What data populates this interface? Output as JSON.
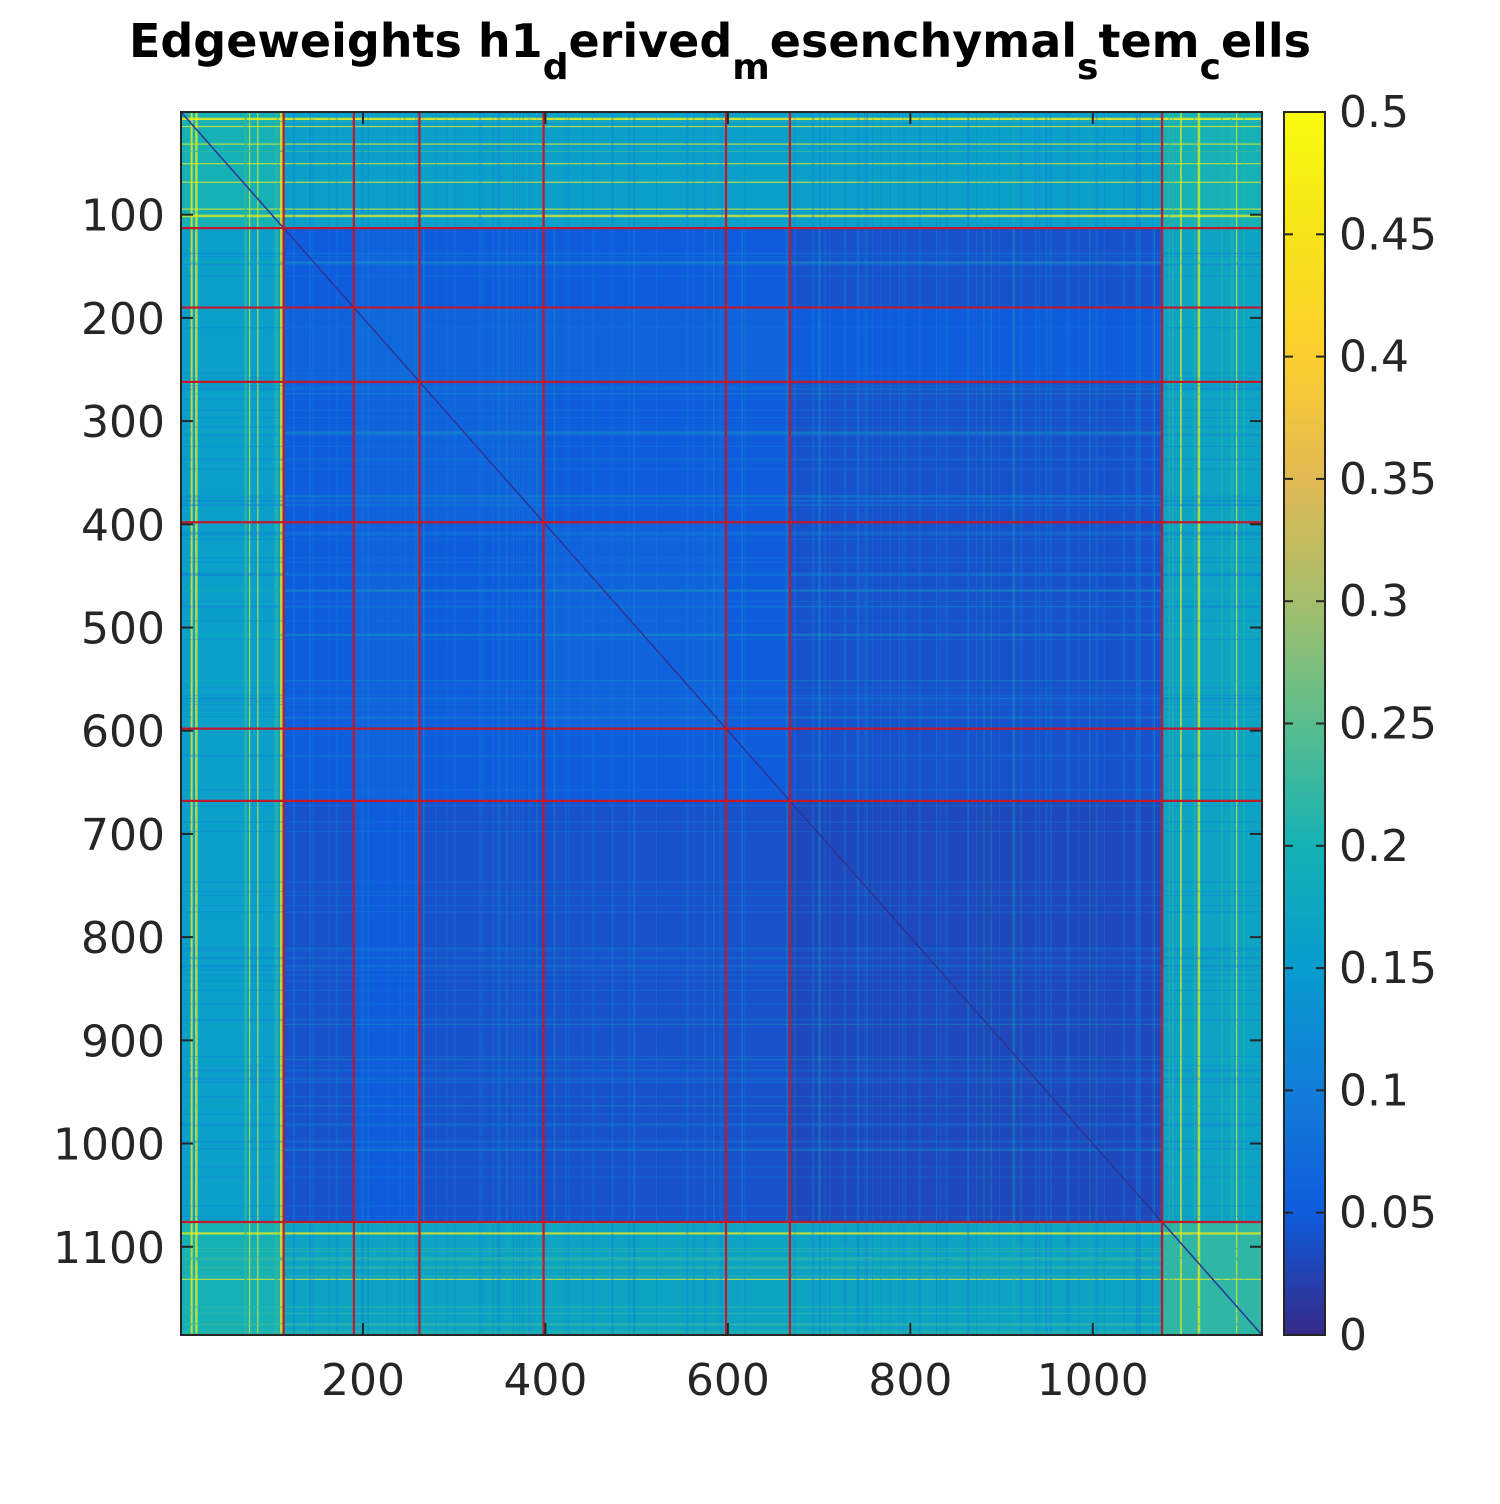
{
  "chart_data": {
    "type": "heatmap",
    "title_parts": [
      {
        "text": "Edgeweights h1",
        "sub": false
      },
      {
        "text": "d",
        "sub": true
      },
      {
        "text": "erived",
        "sub": false
      },
      {
        "text": "m",
        "sub": true
      },
      {
        "text": "esenchymal",
        "sub": false
      },
      {
        "text": "s",
        "sub": true
      },
      {
        "text": "tem",
        "sub": false
      },
      {
        "text": "c",
        "sub": true
      },
      {
        "text": "ells",
        "sub": false
      }
    ],
    "n": 1185,
    "xlim": [
      0.5,
      1185.5
    ],
    "ylim": [
      0.5,
      1185.5
    ],
    "xticks": [
      200,
      400,
      600,
      800,
      1000
    ],
    "xtick_labels": [
      "200",
      "400",
      "600",
      "800",
      "1000"
    ],
    "yticks": [
      100,
      200,
      300,
      400,
      500,
      600,
      700,
      800,
      900,
      1000,
      1100
    ],
    "ytick_labels": [
      "100",
      "200",
      "300",
      "400",
      "500",
      "600",
      "700",
      "800",
      "900",
      "1000",
      "1100"
    ],
    "grid": false,
    "colormap": "parula",
    "clim": [
      0,
      0.5
    ],
    "colorbar_ticks": [
      0,
      0.05,
      0.1,
      0.15,
      0.2,
      0.25,
      0.3,
      0.35,
      0.4,
      0.45,
      0.5
    ],
    "colorbar_tick_labels": [
      "0",
      "0.05",
      "0.1",
      "0.15",
      "0.2",
      "0.25",
      "0.3",
      "0.35",
      "0.4",
      "0.45",
      "0.5"
    ],
    "block_boundaries": [
      113,
      190,
      262,
      398,
      598,
      668,
      1076
    ],
    "block_levels": [
      [
        0.2,
        0.16,
        0.16,
        0.16,
        0.16,
        0.16,
        0.16,
        0.2
      ],
      [
        0.16,
        0.05,
        0.06,
        0.05,
        0.05,
        0.05,
        0.04,
        0.17
      ],
      [
        0.16,
        0.06,
        0.07,
        0.06,
        0.06,
        0.06,
        0.05,
        0.17
      ],
      [
        0.16,
        0.05,
        0.06,
        0.06,
        0.05,
        0.05,
        0.04,
        0.17
      ],
      [
        0.16,
        0.05,
        0.06,
        0.05,
        0.06,
        0.05,
        0.04,
        0.17
      ],
      [
        0.16,
        0.05,
        0.06,
        0.05,
        0.05,
        0.05,
        0.04,
        0.17
      ],
      [
        0.16,
        0.04,
        0.05,
        0.04,
        0.04,
        0.04,
        0.03,
        0.17
      ],
      [
        0.2,
        0.17,
        0.17,
        0.17,
        0.17,
        0.17,
        0.17,
        0.22
      ]
    ],
    "boundary_line_color": "#c0192c",
    "axis_color": "#262626"
  }
}
